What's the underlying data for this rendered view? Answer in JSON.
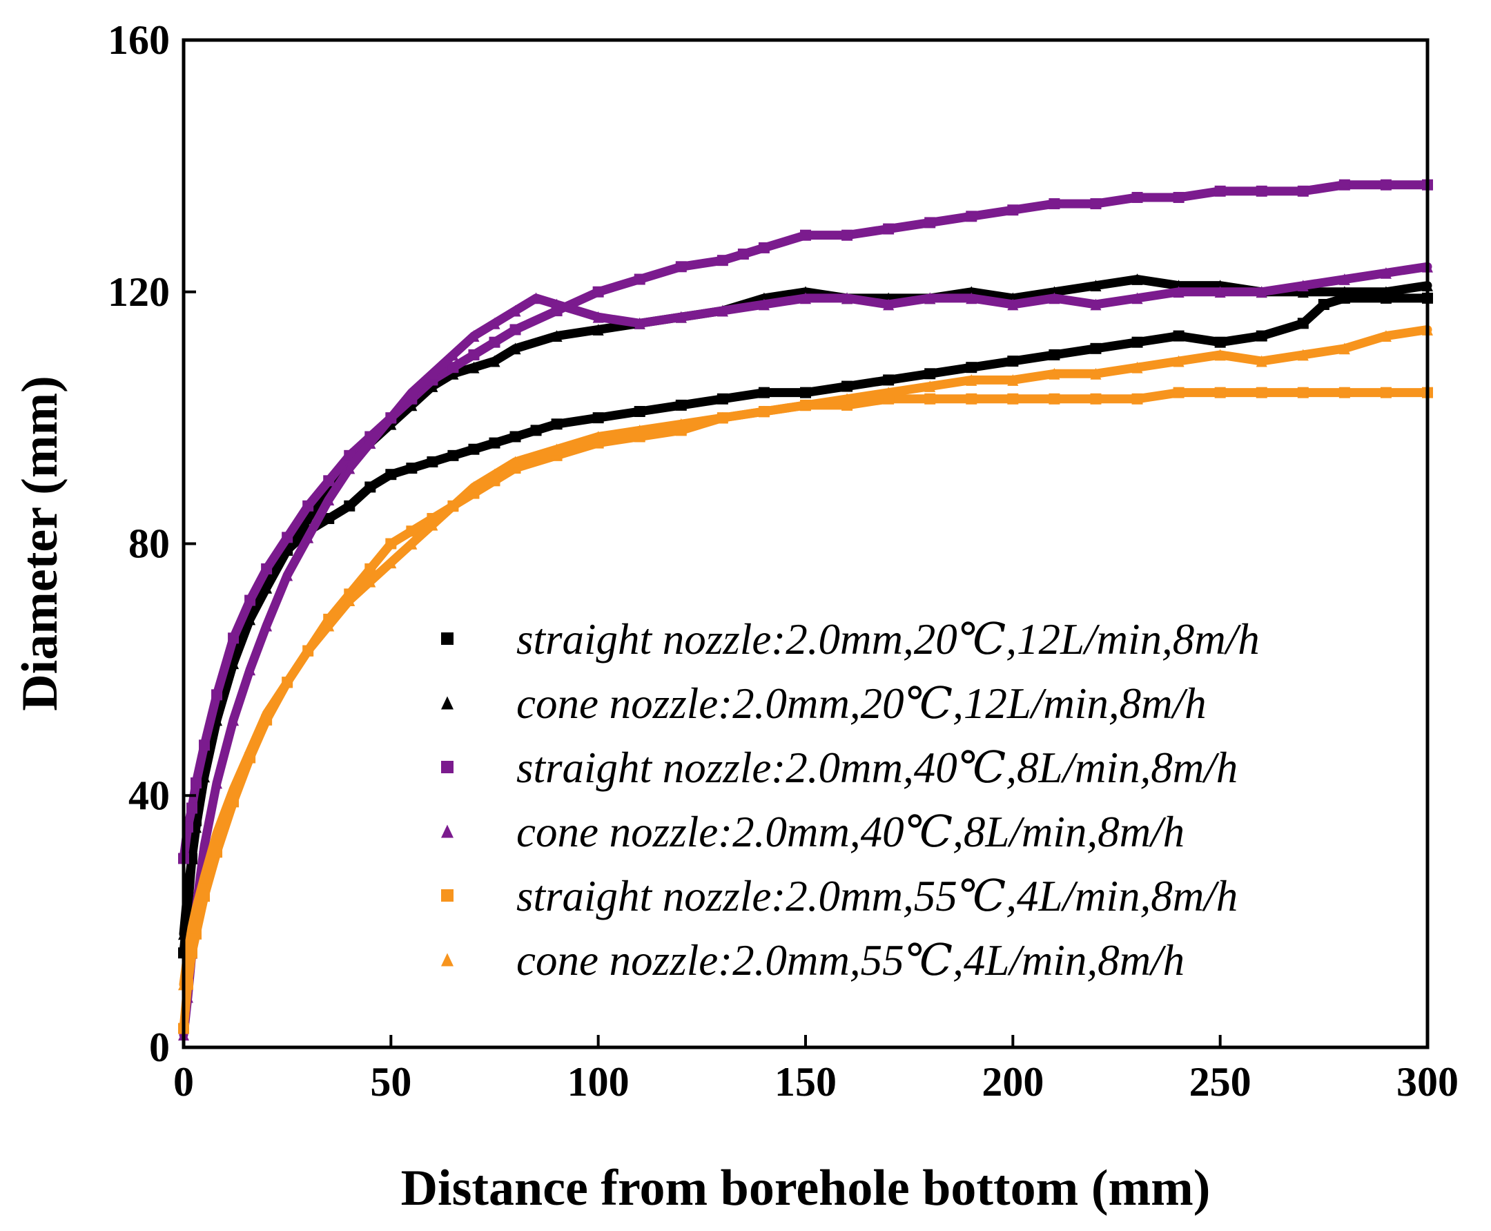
{
  "chart_data": {
    "type": "scatter",
    "title": "",
    "xlabel": "Distance from borehole bottom (mm)",
    "ylabel": "Diameter (mm)",
    "xlim": [
      0,
      300
    ],
    "ylim": [
      0,
      160
    ],
    "xticks": [
      "0",
      "50",
      "100",
      "150",
      "200",
      "250",
      "300"
    ],
    "yticks": [
      "0",
      "40",
      "80",
      "120",
      "160"
    ],
    "grid": false,
    "legend_position": "bottom-right",
    "series": [
      {
        "name": "straight nozzle:2.0mm,20℃,12L/min,8m/h",
        "marker": "square",
        "color": "#000000",
        "x": [
          0,
          1,
          2,
          3,
          5,
          8,
          12,
          16,
          20,
          25,
          30,
          35,
          40,
          45,
          50,
          55,
          60,
          65,
          70,
          75,
          80,
          85,
          90,
          100,
          110,
          120,
          130,
          140,
          150,
          160,
          170,
          180,
          190,
          200,
          210,
          220,
          230,
          240,
          250,
          260,
          270,
          275,
          280,
          290,
          300
        ],
        "y": [
          15,
          22,
          30,
          36,
          45,
          54,
          63,
          69,
          74,
          79,
          82,
          84,
          86,
          89,
          91,
          92,
          93,
          94,
          95,
          96,
          97,
          98,
          99,
          100,
          101,
          102,
          103,
          104,
          104,
          105,
          106,
          107,
          108,
          109,
          110,
          111,
          112,
          113,
          112,
          113,
          115,
          118,
          119,
          119,
          119
        ]
      },
      {
        "name": "cone nozzle:2.0mm,20℃,12L/min,8m/h",
        "marker": "triangle",
        "color": "#000000",
        "x": [
          0,
          1,
          2,
          3,
          5,
          8,
          12,
          16,
          20,
          25,
          30,
          35,
          40,
          45,
          50,
          55,
          60,
          65,
          70,
          75,
          80,
          90,
          100,
          110,
          120,
          130,
          140,
          150,
          160,
          170,
          180,
          190,
          200,
          210,
          220,
          230,
          240,
          250,
          260,
          270,
          280,
          290,
          300
        ],
        "y": [
          18,
          25,
          30,
          35,
          43,
          52,
          61,
          68,
          73,
          79,
          84,
          89,
          93,
          96,
          99,
          102,
          105,
          107,
          108,
          109,
          111,
          113,
          114,
          115,
          116,
          117,
          119,
          120,
          119,
          119,
          119,
          120,
          119,
          120,
          121,
          122,
          121,
          121,
          120,
          120,
          120,
          120,
          121
        ]
      },
      {
        "name": "straight nozzle:2.0mm,40℃,8L/min,8m/h",
        "marker": "square",
        "color": "#7B1B8E",
        "x": [
          0,
          1,
          2,
          3,
          5,
          8,
          12,
          16,
          20,
          25,
          30,
          35,
          40,
          45,
          50,
          55,
          60,
          65,
          70,
          75,
          80,
          90,
          100,
          110,
          120,
          130,
          135,
          140,
          150,
          160,
          170,
          180,
          190,
          200,
          210,
          220,
          230,
          240,
          250,
          260,
          270,
          280,
          290,
          300
        ],
        "y": [
          30,
          35,
          38,
          42,
          48,
          56,
          65,
          71,
          76,
          81,
          86,
          90,
          94,
          97,
          100,
          103,
          106,
          108,
          110,
          112,
          114,
          117,
          120,
          122,
          124,
          125,
          126,
          127,
          129,
          129,
          130,
          131,
          132,
          133,
          134,
          134,
          135,
          135,
          136,
          136,
          136,
          137,
          137,
          137
        ]
      },
      {
        "name": "cone nozzle:2.0mm,40℃,8L/min,8m/h",
        "marker": "triangle",
        "color": "#7B1B8E",
        "x": [
          0,
          1,
          2,
          3,
          5,
          8,
          12,
          16,
          20,
          25,
          30,
          35,
          40,
          45,
          50,
          55,
          60,
          65,
          70,
          75,
          80,
          85,
          90,
          100,
          110,
          120,
          130,
          140,
          150,
          160,
          170,
          180,
          190,
          200,
          210,
          220,
          230,
          240,
          250,
          260,
          270,
          280,
          290,
          300
        ],
        "y": [
          2,
          8,
          15,
          22,
          32,
          42,
          52,
          60,
          67,
          75,
          81,
          87,
          92,
          96,
          100,
          104,
          107,
          110,
          113,
          115,
          117,
          119,
          118,
          116,
          115,
          116,
          117,
          118,
          119,
          119,
          118,
          119,
          119,
          118,
          119,
          118,
          119,
          120,
          120,
          120,
          121,
          122,
          123,
          124
        ]
      },
      {
        "name": "straight nozzle:2.0mm,55℃,4L/min,8m/h",
        "marker": "square",
        "color": "#F7941D",
        "x": [
          0,
          1,
          2,
          3,
          5,
          8,
          12,
          16,
          20,
          25,
          30,
          35,
          40,
          45,
          50,
          55,
          60,
          65,
          70,
          75,
          80,
          90,
          100,
          110,
          120,
          130,
          140,
          150,
          160,
          170,
          180,
          190,
          200,
          210,
          220,
          230,
          240,
          250,
          260,
          270,
          280,
          290,
          300
        ],
        "y": [
          3,
          10,
          15,
          18,
          24,
          31,
          39,
          46,
          52,
          58,
          63,
          68,
          72,
          76,
          80,
          82,
          84,
          86,
          88,
          90,
          92,
          94,
          96,
          97,
          98,
          100,
          101,
          102,
          102,
          103,
          103,
          103,
          103,
          103,
          103,
          103,
          104,
          104,
          104,
          104,
          104,
          104,
          104
        ]
      },
      {
        "name": "cone nozzle:2.0mm,55℃,4L/min,8m/h",
        "marker": "triangle",
        "color": "#F7941D",
        "x": [
          0,
          1,
          2,
          3,
          5,
          8,
          12,
          16,
          20,
          25,
          30,
          35,
          40,
          45,
          50,
          55,
          60,
          65,
          70,
          75,
          80,
          90,
          100,
          110,
          120,
          130,
          140,
          150,
          160,
          170,
          180,
          190,
          200,
          210,
          220,
          230,
          240,
          250,
          260,
          270,
          280,
          290,
          300
        ],
        "y": [
          10,
          15,
          19,
          22,
          27,
          34,
          41,
          47,
          53,
          58,
          63,
          67,
          71,
          74,
          77,
          80,
          83,
          86,
          89,
          91,
          93,
          95,
          97,
          98,
          99,
          100,
          101,
          102,
          103,
          104,
          105,
          106,
          106,
          107,
          107,
          108,
          109,
          110,
          109,
          110,
          111,
          113,
          114
        ]
      }
    ]
  }
}
